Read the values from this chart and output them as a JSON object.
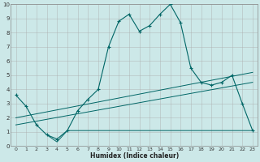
{
  "xlabel": "Humidex (Indice chaleur)",
  "ylabel": "",
  "xlim": [
    -0.5,
    23.5
  ],
  "ylim": [
    0,
    10
  ],
  "background_color": "#cce8e8",
  "grid_color": "#aaaaaa",
  "line_color": "#006666",
  "line1_x": [
    0,
    1,
    2,
    3,
    4,
    5,
    6,
    7,
    8,
    9,
    10,
    11,
    12,
    13,
    14,
    15,
    16,
    17,
    18,
    19,
    20,
    21,
    22,
    23
  ],
  "line1_y": [
    3.6,
    2.8,
    1.5,
    0.8,
    0.5,
    1.1,
    2.5,
    3.3,
    4.0,
    7.0,
    8.8,
    9.3,
    8.1,
    8.5,
    9.3,
    10.0,
    8.7,
    5.5,
    4.5,
    4.3,
    4.5,
    5.0,
    3.0,
    1.1
  ],
  "line2_x": [
    3,
    4,
    5,
    6,
    7,
    8,
    9,
    10,
    11,
    12,
    13,
    14,
    15,
    16,
    17,
    18,
    19,
    20,
    21,
    22,
    23
  ],
  "line2_y": [
    0.8,
    0.3,
    1.1,
    1.1,
    1.1,
    1.1,
    1.1,
    1.1,
    1.1,
    1.1,
    1.1,
    1.1,
    1.1,
    1.1,
    1.1,
    1.1,
    1.1,
    1.1,
    1.1,
    1.1,
    1.1
  ],
  "line3_x": [
    0,
    23
  ],
  "line3_y": [
    1.5,
    4.5
  ],
  "line4_x": [
    0,
    23
  ],
  "line4_y": [
    2.0,
    5.2
  ],
  "xticks": [
    0,
    1,
    2,
    3,
    4,
    5,
    6,
    7,
    8,
    9,
    10,
    11,
    12,
    13,
    14,
    15,
    16,
    17,
    18,
    19,
    20,
    21,
    22,
    23
  ],
  "yticks": [
    0,
    1,
    2,
    3,
    4,
    5,
    6,
    7,
    8,
    9,
    10
  ]
}
